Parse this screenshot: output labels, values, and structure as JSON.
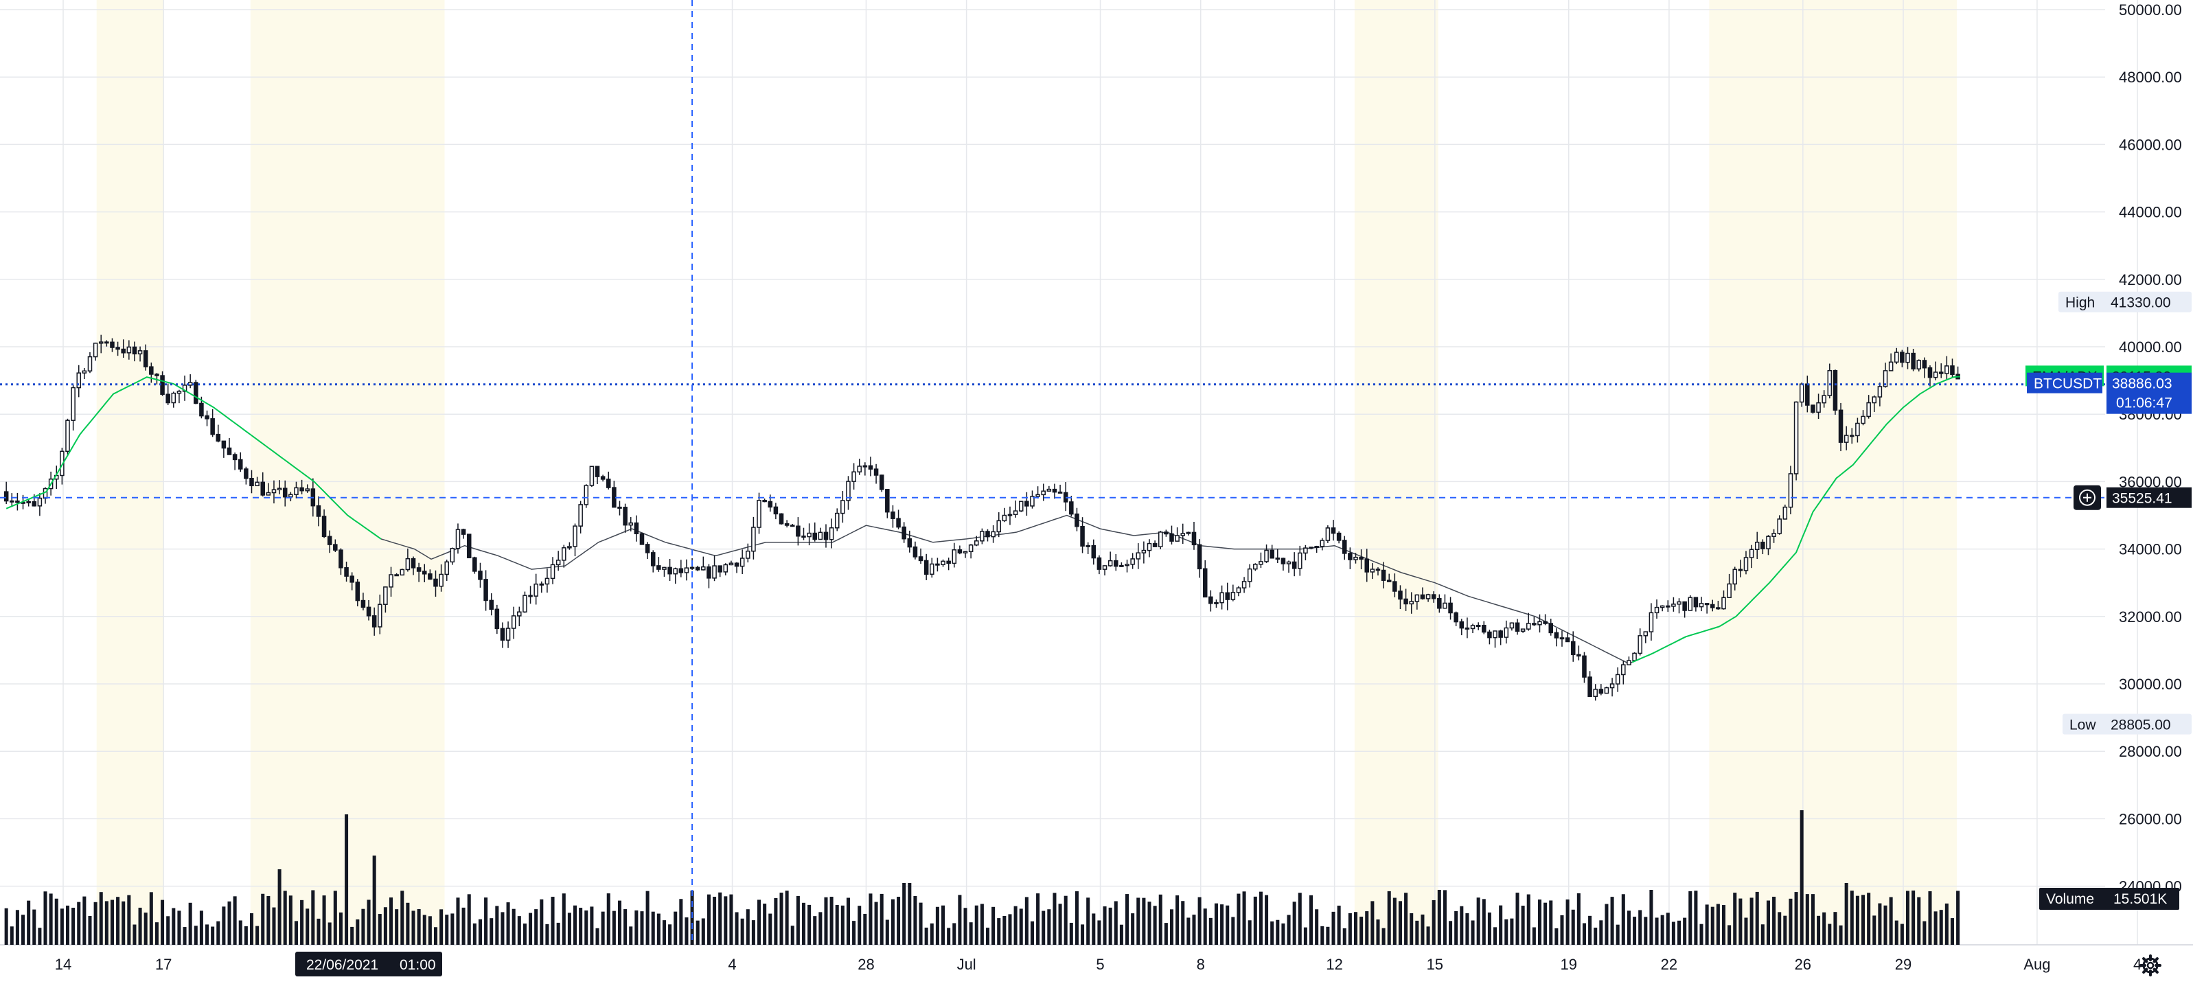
{
  "chart_data": {
    "type": "candlestick",
    "symbol": "BTCUSDT",
    "price_axis": {
      "ticks": [
        "50000.00",
        "48000.00",
        "46000.00",
        "44000.00",
        "42000.00",
        "40000.00",
        "38000.00",
        "36000.00",
        "34000.00",
        "32000.00",
        "30000.00",
        "28000.00",
        "26000.00",
        "24000.00"
      ],
      "tick_values": [
        50000,
        48000,
        46000,
        44000,
        42000,
        40000,
        38000,
        36000,
        34000,
        32000,
        30000,
        28000,
        26000,
        24000
      ],
      "range": [
        23300,
        50200
      ]
    },
    "time_axis": {
      "ticks": [
        "14",
        "17",
        "4",
        "28",
        "Jul",
        "5",
        "8",
        "12",
        "15",
        "19",
        "22",
        "26",
        "29",
        "Aug",
        "4"
      ],
      "tick_days": [
        14,
        17,
        34,
        38,
        41,
        45,
        48,
        52,
        55,
        59,
        62,
        66,
        69,
        73,
        76
      ],
      "day_range": [
        12.3,
        78.2
      ],
      "crosshair_date": "22/06/2021",
      "crosshair_time": "01:00",
      "crosshair_day": 32.8,
      "weekend_shading_days": [
        [
          15.0,
          17.0
        ],
        [
          19.6,
          25.4
        ],
        [
          52.6,
          55.1
        ],
        [
          63.2,
          70.6
        ]
      ]
    },
    "ohlc_control_points": [
      [
        12.3,
        35700
      ],
      [
        13.3,
        35200
      ],
      [
        14.0,
        36200
      ],
      [
        14.5,
        39000
      ],
      [
        15.3,
        40200
      ],
      [
        16.5,
        39700
      ],
      [
        17.3,
        38500
      ],
      [
        18.0,
        38800
      ],
      [
        18.5,
        37700
      ],
      [
        19.3,
        36500
      ],
      [
        20.3,
        35600
      ],
      [
        21.5,
        35700
      ],
      [
        22.0,
        34400
      ],
      [
        22.5,
        33400
      ],
      [
        23.0,
        32600
      ],
      [
        23.5,
        31800
      ],
      [
        24.0,
        33300
      ],
      [
        24.5,
        33700
      ],
      [
        25.3,
        33000
      ],
      [
        26.0,
        34600
      ],
      [
        26.8,
        32500
      ],
      [
        27.3,
        31300
      ],
      [
        28.0,
        32500
      ],
      [
        29.3,
        34100
      ],
      [
        30.0,
        36400
      ],
      [
        31.0,
        34800
      ],
      [
        32.0,
        33300
      ],
      [
        33.5,
        33300
      ],
      [
        34.6,
        33800
      ],
      [
        35.0,
        35400
      ],
      [
        36.0,
        34600
      ],
      [
        37.0,
        34400
      ],
      [
        37.7,
        36100
      ],
      [
        38.3,
        36500
      ],
      [
        39.0,
        34700
      ],
      [
        40.0,
        33300
      ],
      [
        41.5,
        34300
      ],
      [
        42.5,
        35000
      ],
      [
        43.3,
        35600
      ],
      [
        44.0,
        35600
      ],
      [
        45.0,
        33500
      ],
      [
        46.0,
        33600
      ],
      [
        47.0,
        34400
      ],
      [
        48.0,
        34300
      ],
      [
        48.3,
        32500
      ],
      [
        49.3,
        32700
      ],
      [
        50.0,
        33800
      ],
      [
        51.0,
        33600
      ],
      [
        52.0,
        34600
      ],
      [
        52.5,
        33800
      ],
      [
        53.5,
        33200
      ],
      [
        54.5,
        32400
      ],
      [
        55.0,
        32700
      ],
      [
        56.0,
        31800
      ],
      [
        57.0,
        31500
      ],
      [
        58.0,
        31800
      ],
      [
        58.8,
        31500
      ],
      [
        59.5,
        30700
      ],
      [
        59.7,
        29800
      ],
      [
        60.5,
        29900
      ],
      [
        61.0,
        30800
      ],
      [
        61.5,
        31800
      ],
      [
        62.0,
        32300
      ],
      [
        63.0,
        32400
      ],
      [
        63.5,
        32100
      ],
      [
        64.0,
        33000
      ],
      [
        64.5,
        33900
      ],
      [
        65.0,
        34200
      ],
      [
        65.5,
        34800
      ],
      [
        65.9,
        36500
      ],
      [
        66.0,
        39100
      ],
      [
        66.5,
        37800
      ],
      [
        67.0,
        39300
      ],
      [
        67.3,
        37000
      ],
      [
        68.0,
        37900
      ],
      [
        68.5,
        39000
      ],
      [
        69.0,
        39800
      ],
      [
        69.5,
        39500
      ],
      [
        70.0,
        39200
      ],
      [
        70.5,
        39500
      ],
      [
        70.7,
        38900
      ]
    ],
    "ema_control_points": [
      [
        12.3,
        35200
      ],
      [
        13.5,
        35700
      ],
      [
        14.5,
        37400
      ],
      [
        15.5,
        38600
      ],
      [
        16.5,
        39100
      ],
      [
        17.3,
        38900
      ],
      [
        18.5,
        38200
      ],
      [
        20.0,
        37100
      ],
      [
        21.5,
        36000
      ],
      [
        22.5,
        35000
      ],
      [
        23.5,
        34300
      ],
      [
        24.5,
        34000
      ],
      [
        25.0,
        33700
      ],
      [
        26.0,
        34100
      ],
      [
        27.0,
        33800
      ],
      [
        28.0,
        33400
      ],
      [
        29.0,
        33500
      ],
      [
        30.0,
        34200
      ],
      [
        31.0,
        34600
      ],
      [
        32.0,
        34200
      ],
      [
        33.5,
        33800
      ],
      [
        35.0,
        34200
      ],
      [
        36.0,
        34200
      ],
      [
        37.0,
        34200
      ],
      [
        38.0,
        34700
      ],
      [
        39.0,
        34500
      ],
      [
        40.0,
        34200
      ],
      [
        41.0,
        34300
      ],
      [
        42.5,
        34500
      ],
      [
        44.0,
        35000
      ],
      [
        45.0,
        34600
      ],
      [
        46.0,
        34400
      ],
      [
        47.0,
        34500
      ],
      [
        48.0,
        34100
      ],
      [
        49.0,
        34000
      ],
      [
        50.0,
        34000
      ],
      [
        51.0,
        34000
      ],
      [
        52.0,
        34100
      ],
      [
        53.0,
        33700
      ],
      [
        54.0,
        33300
      ],
      [
        55.0,
        33000
      ],
      [
        56.0,
        32600
      ],
      [
        57.0,
        32300
      ],
      [
        58.0,
        32000
      ],
      [
        59.0,
        31500
      ],
      [
        60.0,
        31000
      ],
      [
        60.8,
        30600
      ],
      [
        61.5,
        30900
      ],
      [
        62.5,
        31400
      ],
      [
        63.5,
        31700
      ],
      [
        64.0,
        32000
      ],
      [
        65.0,
        33000
      ],
      [
        65.8,
        33900
      ],
      [
        66.3,
        35100
      ],
      [
        67.0,
        36100
      ],
      [
        67.5,
        36500
      ],
      [
        68.0,
        37100
      ],
      [
        68.5,
        37700
      ],
      [
        69.0,
        38200
      ],
      [
        69.5,
        38600
      ],
      [
        70.0,
        38900
      ],
      [
        70.5,
        39100
      ],
      [
        70.7,
        39115
      ]
    ],
    "volume_spikes": [
      [
        22.5,
        0.95
      ],
      [
        23.3,
        0.65
      ],
      [
        20.5,
        0.55
      ],
      [
        39.2,
        0.45
      ],
      [
        66.0,
        0.98
      ],
      [
        67.3,
        0.45
      ],
      [
        61.5,
        0.4
      ],
      [
        33.5,
        0.35
      ],
      [
        35.5,
        0.38
      ],
      [
        37.0,
        0.35
      ]
    ],
    "series": [
      {
        "name": "BTCUSDT",
        "color": "#131722"
      },
      {
        "name": "EMA/ADX",
        "color": "#00c853"
      }
    ]
  },
  "tags": {
    "high_label": "High",
    "high_value": "41330.00",
    "high_price": 41330,
    "ema_label": "EMA/ADX",
    "ema_value": "39115.82",
    "ema_price": 39115.82,
    "symbol_label": "BTCUSDT",
    "last_value": "38886.03",
    "last_price": 38886.03,
    "countdown": "01:06:47",
    "cross_value": "35525.41",
    "cross_price": 35525.41,
    "low_label": "Low",
    "low_value": "28805.00",
    "low_price": 28805,
    "volume_label": "Volume",
    "volume_value": "15.501K"
  },
  "icons": {
    "crosshair_add": "plus-circle-icon",
    "settings": "gear-icon"
  },
  "colors": {
    "up": "#ffffff",
    "down": "#131722",
    "ema": "#00c853",
    "ema_tag": "#00d65a",
    "last_tag": "#1848cc",
    "crosshair": "#2962ff",
    "grid": "#e6e8ec",
    "weekend": "#fdfaea",
    "label_bg": "#e9eef7",
    "dark": "#131722"
  }
}
